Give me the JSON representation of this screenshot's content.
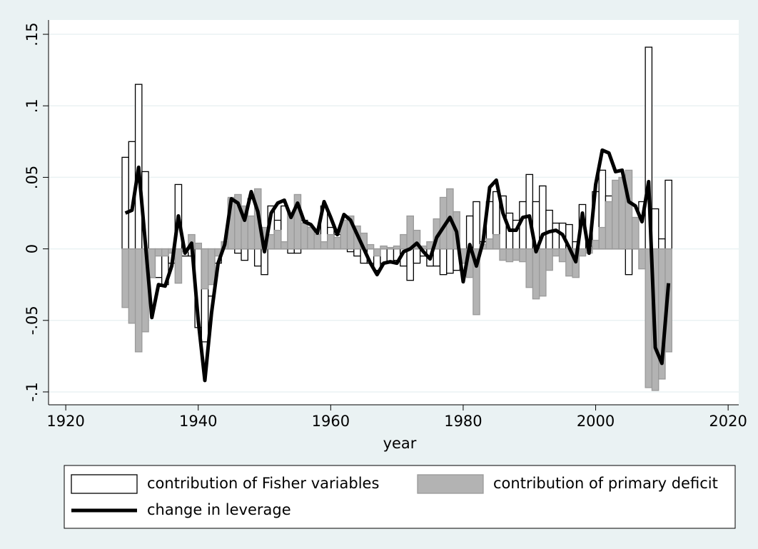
{
  "chart_data": {
    "type": "bar",
    "x_label": "year",
    "x": [
      1929,
      1930,
      1931,
      1932,
      1933,
      1934,
      1935,
      1936,
      1937,
      1938,
      1939,
      1940,
      1941,
      1942,
      1943,
      1944,
      1945,
      1946,
      1947,
      1948,
      1949,
      1950,
      1951,
      1952,
      1953,
      1954,
      1955,
      1956,
      1957,
      1958,
      1959,
      1960,
      1961,
      1962,
      1963,
      1964,
      1965,
      1966,
      1967,
      1968,
      1969,
      1970,
      1971,
      1972,
      1973,
      1974,
      1975,
      1976,
      1977,
      1978,
      1979,
      1980,
      1981,
      1982,
      1983,
      1984,
      1985,
      1986,
      1987,
      1988,
      1989,
      1990,
      1991,
      1992,
      1993,
      1994,
      1995,
      1996,
      1997,
      1998,
      1999,
      2000,
      2001,
      2002,
      2003,
      2004,
      2005,
      2006,
      2007,
      2008,
      2009,
      2010,
      2011
    ],
    "series": [
      {
        "name": "contribution of Fisher variables",
        "kind": "bar",
        "color": "#ffffff",
        "edgecolor": "#000000",
        "values": [
          0.064,
          0.075,
          0.115,
          0.054,
          -0.02,
          -0.02,
          -0.025,
          -0.01,
          0.045,
          -0.005,
          -0.005,
          -0.055,
          -0.065,
          -0.033,
          -0.01,
          0.005,
          0.035,
          -0.003,
          -0.008,
          0.035,
          -0.012,
          -0.018,
          0.03,
          0.02,
          0.03,
          -0.003,
          -0.003,
          0.02,
          0.015,
          0.01,
          0.03,
          0.015,
          0.01,
          0.02,
          -0.002,
          -0.005,
          -0.01,
          -0.01,
          -0.015,
          -0.01,
          -0.01,
          -0.008,
          -0.012,
          -0.022,
          -0.01,
          -0.005,
          -0.012,
          -0.012,
          -0.018,
          -0.017,
          -0.015,
          -0.01,
          0.023,
          0.033,
          0.005,
          0.033,
          0.04,
          0.037,
          0.025,
          0.02,
          0.033,
          0.052,
          0.033,
          0.044,
          0.027,
          0.018,
          0.018,
          0.017,
          0.005,
          0.031,
          0.002,
          0.04,
          0.055,
          0.037,
          0.035,
          0.035,
          -0.018,
          0.02,
          0.033,
          0.141,
          0.028,
          0.007,
          0.048
        ]
      },
      {
        "name": "contribution of primary deficit",
        "kind": "bar",
        "color": "#b3b3b3",
        "edgecolor": "#9a9a9a",
        "values": [
          -0.041,
          -0.052,
          -0.072,
          -0.058,
          -0.02,
          -0.005,
          -0.005,
          -0.003,
          -0.024,
          -0.002,
          0.01,
          0.004,
          -0.028,
          -0.025,
          -0.005,
          0.005,
          0.036,
          0.038,
          0.03,
          0.023,
          0.042,
          0.015,
          0.01,
          0.013,
          0.005,
          0.025,
          0.038,
          0.018,
          0.015,
          0.01,
          0.005,
          0.01,
          0.008,
          0.02,
          0.023,
          0.016,
          0.011,
          0.003,
          -0.005,
          0.002,
          0.001,
          0.002,
          0.01,
          0.023,
          0.013,
          0.002,
          0.005,
          0.021,
          0.036,
          0.042,
          0.026,
          -0.01,
          -0.02,
          -0.046,
          0.003,
          0.007,
          0.01,
          -0.008,
          -0.009,
          -0.008,
          -0.009,
          -0.027,
          -0.035,
          -0.033,
          -0.015,
          -0.005,
          -0.009,
          -0.019,
          -0.02,
          -0.005,
          -0.003,
          0.006,
          0.015,
          0.033,
          0.048,
          0.05,
          0.055,
          0.022,
          -0.014,
          -0.097,
          -0.099,
          -0.091,
          -0.072
        ]
      },
      {
        "name": "change in leverage",
        "kind": "line",
        "color": "#000000",
        "values": [
          0.025,
          0.027,
          0.057,
          0.005,
          -0.048,
          -0.025,
          -0.026,
          -0.012,
          0.023,
          -0.003,
          0.004,
          -0.05,
          -0.092,
          -0.045,
          -0.01,
          0.003,
          0.035,
          0.032,
          0.02,
          0.04,
          0.026,
          -0.002,
          0.025,
          0.032,
          0.034,
          0.022,
          0.032,
          0.019,
          0.017,
          0.011,
          0.033,
          0.022,
          0.01,
          0.024,
          0.02,
          0.01,
          0.0,
          -0.01,
          -0.018,
          -0.01,
          -0.009,
          -0.01,
          -0.002,
          0.0,
          0.004,
          -0.002,
          -0.007,
          0.008,
          0.015,
          0.022,
          0.012,
          -0.023,
          0.003,
          -0.012,
          0.005,
          0.043,
          0.048,
          0.025,
          0.013,
          0.013,
          0.022,
          0.023,
          -0.002,
          0.01,
          0.012,
          0.013,
          0.01,
          0.001,
          -0.009,
          0.025,
          -0.003,
          0.045,
          0.069,
          0.067,
          0.054,
          0.055,
          0.033,
          0.03,
          0.019,
          0.047,
          -0.069,
          -0.08,
          -0.024
        ]
      }
    ],
    "xlim": [
      1917.4,
      2021.6
    ],
    "ylim": [
      -0.109,
      0.16
    ],
    "xticks": [
      1920,
      1940,
      1960,
      1980,
      2000,
      2020
    ],
    "yticks": [
      {
        "value": -0.1,
        "label": "-.1"
      },
      {
        "value": -0.05,
        "label": "-.05"
      },
      0,
      {
        "value": 0.05,
        "label": ".05"
      },
      {
        "value": 0.1,
        "label": ".1"
      },
      {
        "value": 0.15,
        "label": ".15"
      }
    ],
    "grid": true,
    "legend": "bottom"
  }
}
